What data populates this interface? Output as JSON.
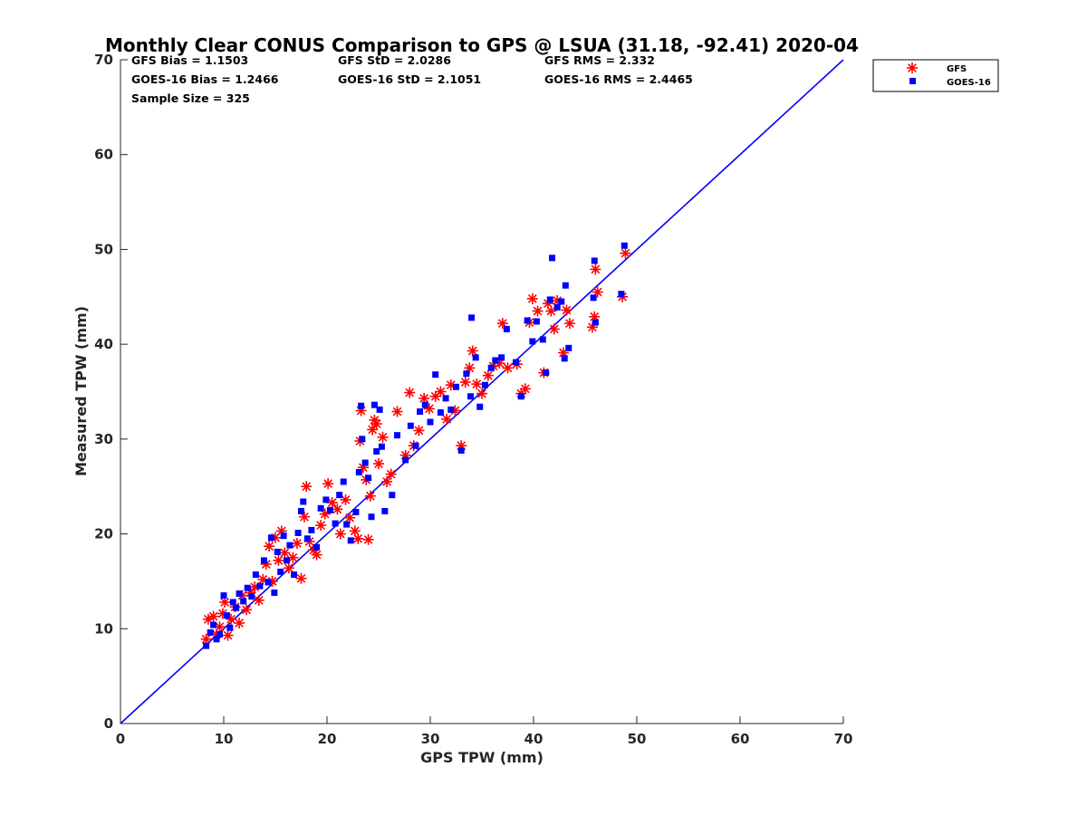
{
  "chart_data": {
    "type": "scatter",
    "title": "Monthly Clear CONUS Comparison to GPS @ LSUA (31.18, -92.41) 2020-04",
    "xlabel": "GPS TPW (mm)",
    "ylabel": "Measured TPW (mm)",
    "xlim": [
      0,
      70
    ],
    "ylim": [
      0,
      70
    ],
    "xticks": [
      "0",
      "10",
      "20",
      "30",
      "40",
      "50",
      "60",
      "70"
    ],
    "yticks": [
      "0",
      "10",
      "20",
      "30",
      "40",
      "50",
      "60",
      "70"
    ],
    "grid": false,
    "legend_position": "top-right outside",
    "stats": [
      "GFS Bias = 1.1503",
      "GFS StD = 2.0286",
      "GFS RMS = 2.332",
      "GOES-16 Bias = 1.2466",
      "GOES-16 StD = 2.1051",
      "GOES-16 RMS = 2.4465",
      "Sample Size = 325"
    ],
    "reference_line": {
      "x": [
        0,
        70
      ],
      "y": [
        0,
        70
      ],
      "color": "#0000ff"
    },
    "series": [
      {
        "name": "GFS",
        "marker": "asterisk",
        "color": "#ff0000",
        "points": [
          [
            8.3,
            8.9
          ],
          [
            8.5,
            11.0
          ],
          [
            9.0,
            11.3
          ],
          [
            9.3,
            9.4
          ],
          [
            9.6,
            10.2
          ],
          [
            9.9,
            11.6
          ],
          [
            10.1,
            12.8
          ],
          [
            10.4,
            9.3
          ],
          [
            10.7,
            11.0
          ],
          [
            11.1,
            12.3
          ],
          [
            11.5,
            10.6
          ],
          [
            11.8,
            13.5
          ],
          [
            12.2,
            12.0
          ],
          [
            12.6,
            13.8
          ],
          [
            13.0,
            14.4
          ],
          [
            13.4,
            13.0
          ],
          [
            13.8,
            15.2
          ],
          [
            14.1,
            16.8
          ],
          [
            14.4,
            18.7
          ],
          [
            14.7,
            15.0
          ],
          [
            15.0,
            19.6
          ],
          [
            15.3,
            17.2
          ],
          [
            15.6,
            20.3
          ],
          [
            15.9,
            18.0
          ],
          [
            16.3,
            16.4
          ],
          [
            16.7,
            17.5
          ],
          [
            17.1,
            19.0
          ],
          [
            17.5,
            15.3
          ],
          [
            17.8,
            21.8
          ],
          [
            18.0,
            25.0
          ],
          [
            18.3,
            19.2
          ],
          [
            18.7,
            18.3
          ],
          [
            19.0,
            17.8
          ],
          [
            19.4,
            20.9
          ],
          [
            19.8,
            22.1
          ],
          [
            20.1,
            25.3
          ],
          [
            20.5,
            23.3
          ],
          [
            21.0,
            22.6
          ],
          [
            21.3,
            20.0
          ],
          [
            21.8,
            23.6
          ],
          [
            22.2,
            21.7
          ],
          [
            22.7,
            20.3
          ],
          [
            23.0,
            19.5
          ],
          [
            23.3,
            33.0
          ],
          [
            23.2,
            29.8
          ],
          [
            23.5,
            27.0
          ],
          [
            23.8,
            25.7
          ],
          [
            24.0,
            19.4
          ],
          [
            24.2,
            24.0
          ],
          [
            24.4,
            31.0
          ],
          [
            24.6,
            32.0
          ],
          [
            24.8,
            31.6
          ],
          [
            25.0,
            27.4
          ],
          [
            25.4,
            30.2
          ],
          [
            25.8,
            25.5
          ],
          [
            26.2,
            26.3
          ],
          [
            26.8,
            32.9
          ],
          [
            27.6,
            28.3
          ],
          [
            28.0,
            34.9
          ],
          [
            28.4,
            29.3
          ],
          [
            28.9,
            30.9
          ],
          [
            29.4,
            34.3
          ],
          [
            29.9,
            33.2
          ],
          [
            30.5,
            34.5
          ],
          [
            31.0,
            35.0
          ],
          [
            31.6,
            32.1
          ],
          [
            32.0,
            35.7
          ],
          [
            32.4,
            33.0
          ],
          [
            33.0,
            29.3
          ],
          [
            33.4,
            36.0
          ],
          [
            33.8,
            37.5
          ],
          [
            34.1,
            39.3
          ],
          [
            34.5,
            35.8
          ],
          [
            35.0,
            34.8
          ],
          [
            35.6,
            36.7
          ],
          [
            36.1,
            37.7
          ],
          [
            36.7,
            38.0
          ],
          [
            37.0,
            42.2
          ],
          [
            37.5,
            37.5
          ],
          [
            38.4,
            37.9
          ],
          [
            38.8,
            34.8
          ],
          [
            39.2,
            35.3
          ],
          [
            39.6,
            42.3
          ],
          [
            39.9,
            44.8
          ],
          [
            40.4,
            43.5
          ],
          [
            41.0,
            37.0
          ],
          [
            41.4,
            44.3
          ],
          [
            41.7,
            43.5
          ],
          [
            42.0,
            41.6
          ],
          [
            42.3,
            44.6
          ],
          [
            42.9,
            39.1
          ],
          [
            43.2,
            43.6
          ],
          [
            43.5,
            42.2
          ],
          [
            45.7,
            41.8
          ],
          [
            45.9,
            42.9
          ],
          [
            46.0,
            47.9
          ],
          [
            46.2,
            45.5
          ],
          [
            48.6,
            45.0
          ],
          [
            48.9,
            49.6
          ]
        ]
      },
      {
        "name": "GOES-16",
        "marker": "square",
        "color": "#0000ff",
        "points": [
          [
            8.3,
            8.2
          ],
          [
            8.7,
            9.6
          ],
          [
            9.0,
            10.4
          ],
          [
            9.3,
            8.9
          ],
          [
            9.6,
            9.4
          ],
          [
            10.0,
            13.5
          ],
          [
            10.3,
            11.4
          ],
          [
            10.6,
            10.1
          ],
          [
            10.9,
            12.8
          ],
          [
            11.2,
            12.2
          ],
          [
            11.5,
            13.7
          ],
          [
            11.9,
            12.9
          ],
          [
            12.3,
            14.3
          ],
          [
            12.7,
            13.4
          ],
          [
            13.1,
            15.7
          ],
          [
            13.5,
            14.5
          ],
          [
            13.9,
            17.2
          ],
          [
            14.3,
            14.9
          ],
          [
            14.6,
            19.6
          ],
          [
            14.9,
            13.8
          ],
          [
            15.2,
            18.1
          ],
          [
            15.5,
            16.0
          ],
          [
            15.8,
            19.8
          ],
          [
            16.1,
            17.2
          ],
          [
            16.4,
            18.8
          ],
          [
            16.8,
            15.7
          ],
          [
            17.2,
            20.1
          ],
          [
            17.5,
            22.4
          ],
          [
            17.7,
            23.4
          ],
          [
            18.1,
            19.5
          ],
          [
            18.5,
            20.4
          ],
          [
            19.0,
            18.6
          ],
          [
            19.4,
            22.7
          ],
          [
            19.9,
            23.6
          ],
          [
            20.3,
            22.5
          ],
          [
            20.8,
            21.1
          ],
          [
            21.2,
            24.1
          ],
          [
            21.6,
            25.5
          ],
          [
            21.9,
            21.0
          ],
          [
            22.3,
            19.3
          ],
          [
            22.8,
            22.3
          ],
          [
            23.1,
            26.5
          ],
          [
            23.3,
            33.5
          ],
          [
            23.4,
            30.0
          ],
          [
            23.7,
            27.5
          ],
          [
            24.0,
            25.9
          ],
          [
            24.3,
            21.8
          ],
          [
            24.6,
            33.6
          ],
          [
            24.8,
            28.7
          ],
          [
            25.1,
            33.1
          ],
          [
            25.3,
            29.2
          ],
          [
            25.6,
            22.4
          ],
          [
            26.3,
            24.1
          ],
          [
            26.8,
            30.4
          ],
          [
            27.6,
            27.8
          ],
          [
            28.1,
            31.4
          ],
          [
            28.6,
            29.3
          ],
          [
            29.0,
            32.9
          ],
          [
            29.5,
            33.6
          ],
          [
            30.0,
            31.8
          ],
          [
            30.5,
            36.8
          ],
          [
            31.0,
            32.8
          ],
          [
            31.5,
            34.3
          ],
          [
            32.0,
            33.1
          ],
          [
            32.5,
            35.5
          ],
          [
            33.0,
            28.8
          ],
          [
            33.5,
            36.9
          ],
          [
            33.9,
            34.5
          ],
          [
            34.0,
            42.8
          ],
          [
            34.4,
            38.6
          ],
          [
            34.8,
            33.4
          ],
          [
            35.3,
            35.7
          ],
          [
            35.9,
            37.5
          ],
          [
            36.3,
            38.3
          ],
          [
            36.9,
            38.6
          ],
          [
            37.4,
            41.6
          ],
          [
            38.3,
            38.1
          ],
          [
            38.8,
            34.5
          ],
          [
            39.4,
            42.5
          ],
          [
            39.9,
            40.3
          ],
          [
            40.3,
            42.4
          ],
          [
            40.9,
            40.5
          ],
          [
            41.2,
            37.0
          ],
          [
            41.6,
            44.7
          ],
          [
            41.8,
            49.1
          ],
          [
            42.3,
            43.9
          ],
          [
            42.7,
            44.5
          ],
          [
            43.1,
            46.2
          ],
          [
            43.4,
            39.6
          ],
          [
            43.0,
            38.5
          ],
          [
            45.8,
            44.9
          ],
          [
            45.9,
            48.8
          ],
          [
            46.0,
            42.3
          ],
          [
            48.5,
            45.3
          ],
          [
            48.8,
            50.4
          ]
        ]
      }
    ]
  }
}
